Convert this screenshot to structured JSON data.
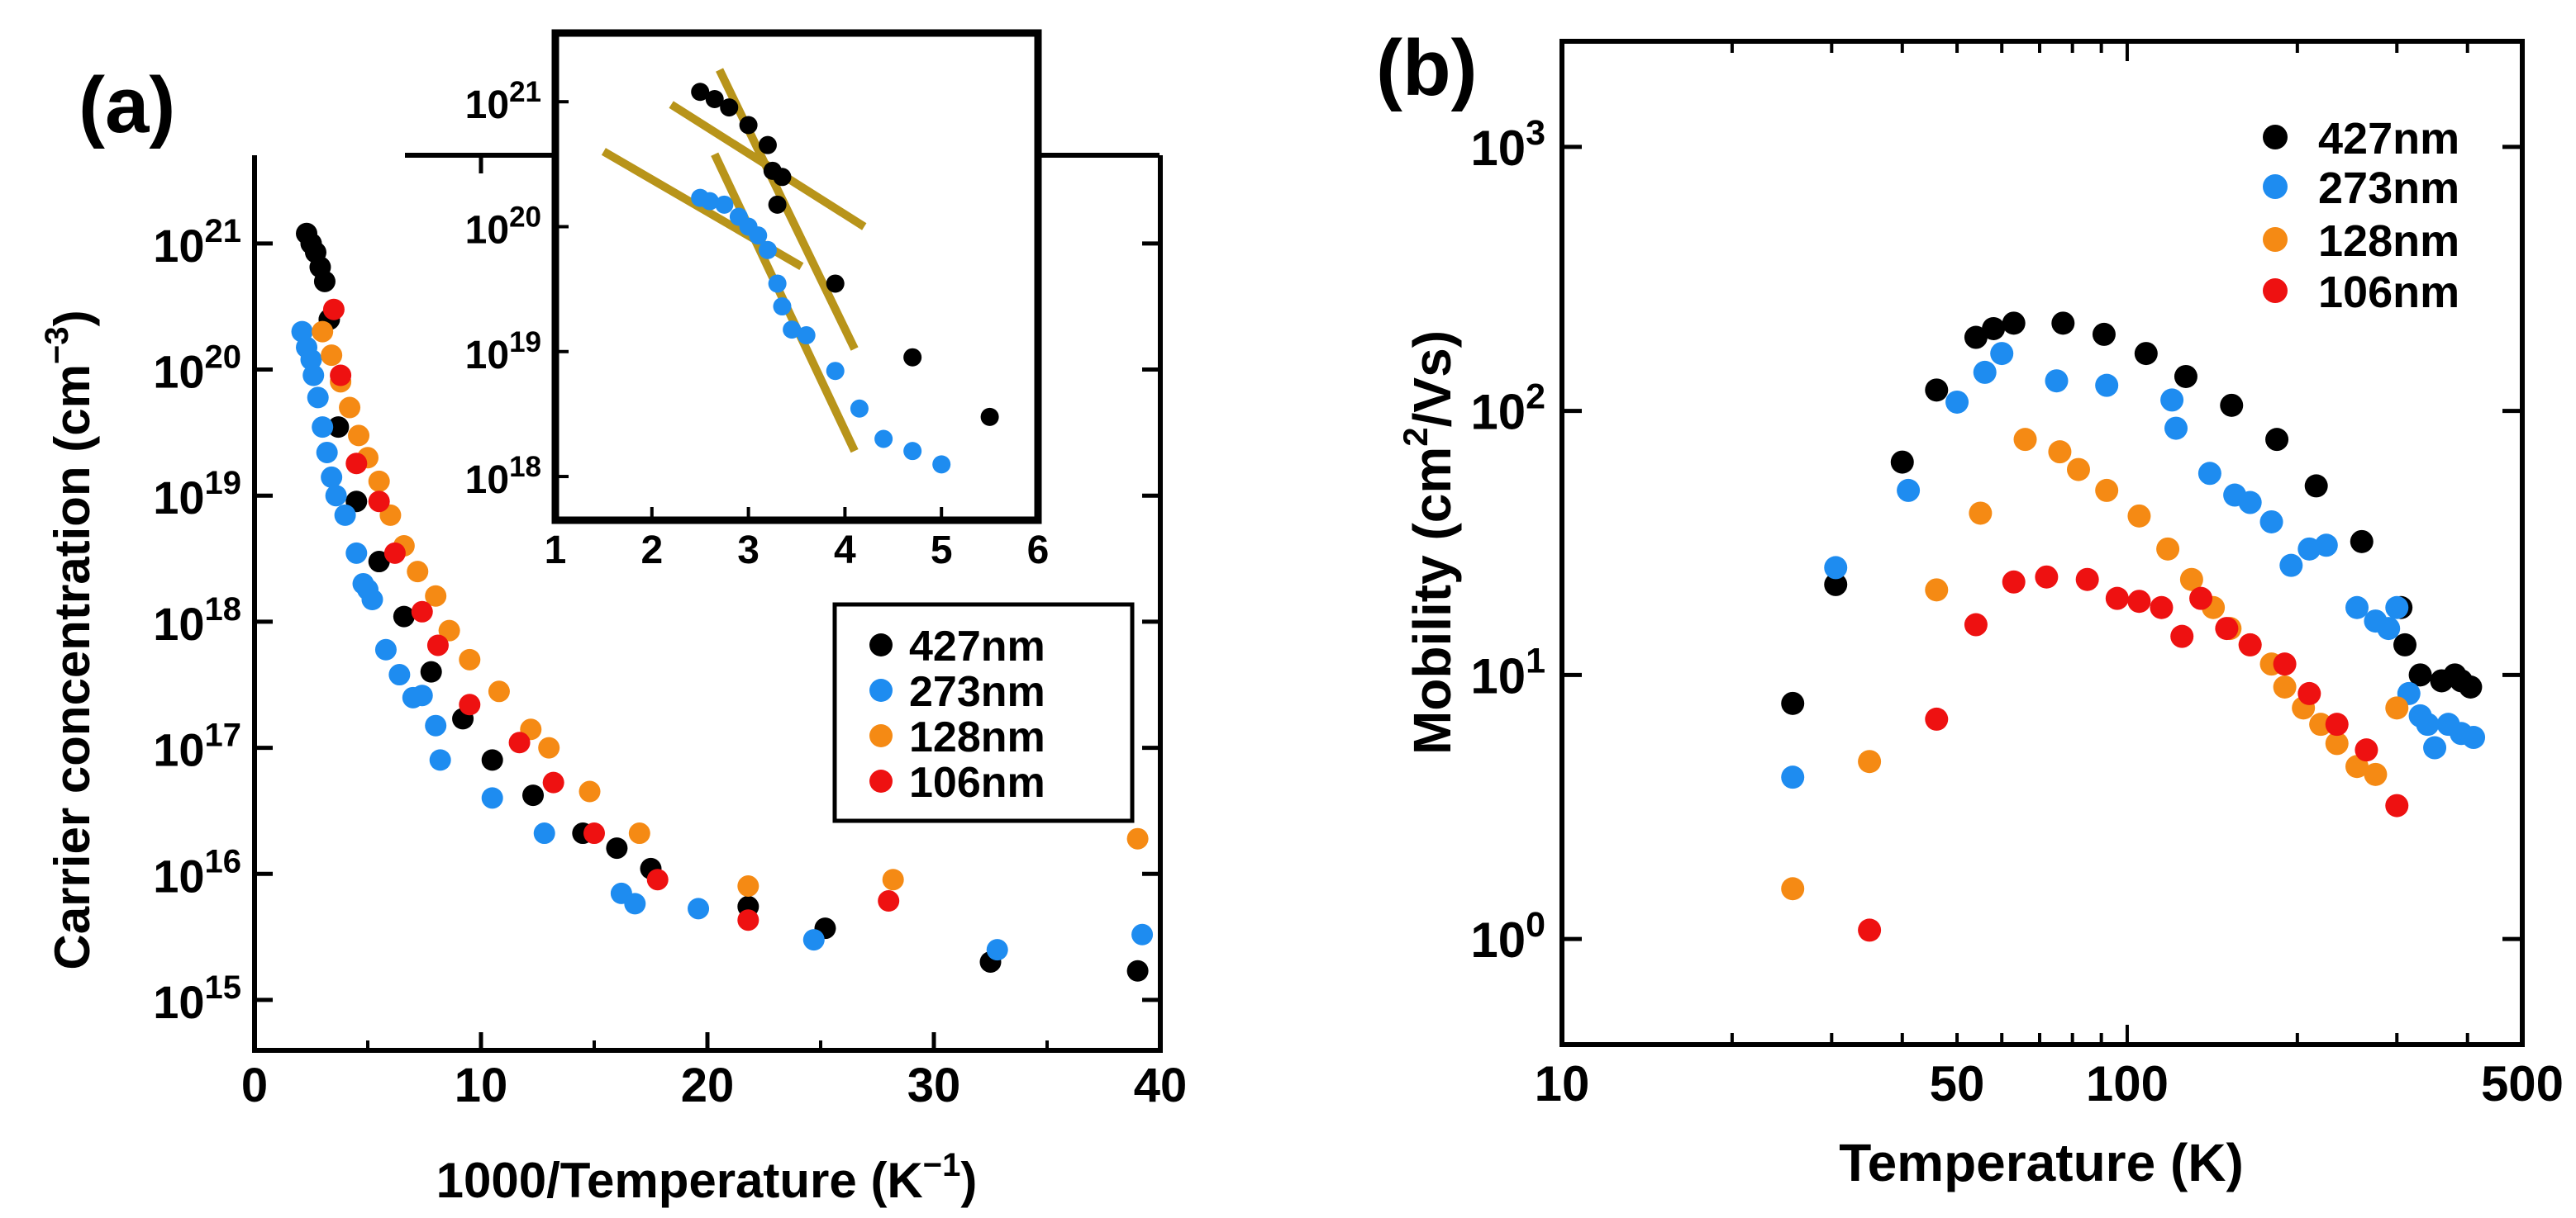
{
  "colors": {
    "427nm": "#000000",
    "273nm": "#1e8cf0",
    "128nm": "#f58a14",
    "106nm": "#ee1111",
    "fit_line": "#b8941a",
    "axis": "#000000"
  },
  "chart_data": [
    {
      "panel": "(a)",
      "type": "scatter",
      "xlabel_main": "1000/Temperature (K",
      "xlabel_sup": "−1",
      "xlabel_close": ")",
      "ylabel_main": "Carrier concentration (cm",
      "ylabel_sup": "−3",
      "ylabel_close": ")",
      "xlim": [
        0,
        40
      ],
      "ylim_log10": [
        14.6,
        21.7
      ],
      "x_ticks": [
        "0",
        "10",
        "20",
        "30",
        "40"
      ],
      "y_ticks": [
        {
          "base": "10",
          "exp": "15",
          "value": 15
        },
        {
          "base": "10",
          "exp": "16",
          "value": 16
        },
        {
          "base": "10",
          "exp": "17",
          "value": 17
        },
        {
          "base": "10",
          "exp": "18",
          "value": 18
        },
        {
          "base": "10",
          "exp": "19",
          "value": 19
        },
        {
          "base": "10",
          "exp": "20",
          "value": 20
        },
        {
          "base": "10",
          "exp": "21",
          "value": 21
        }
      ],
      "legend": [
        "427nm",
        "273nm",
        "128nm",
        "106nm"
      ],
      "series": [
        {
          "name": "427nm",
          "points": [
            [
              2.3,
              1.2e+21
            ],
            [
              2.5,
              1e+21
            ],
            [
              2.7,
              8.5e+20
            ],
            [
              2.9,
              6.5e+20
            ],
            [
              3.1,
              5e+20
            ],
            [
              3.3,
              2.5e+20
            ],
            [
              3.7,
              3.5e+19
            ],
            [
              4.5,
              9e+18
            ],
            [
              5.5,
              3e+18
            ],
            [
              6.6,
              1.1e+18
            ],
            [
              7.8,
              4e+17
            ],
            [
              9.2,
              1.7e+17
            ],
            [
              10.5,
              8e+16
            ],
            [
              12.3,
              4.2e+16
            ],
            [
              14.5,
              2.1e+16
            ],
            [
              16.0,
              1.6e+16
            ],
            [
              17.5,
              1.1e+16
            ],
            [
              21.8,
              5500000000000000.0
            ],
            [
              25.2,
              3700000000000000.0
            ],
            [
              32.5,
              2000000000000000.0
            ],
            [
              39.0,
              1700000000000000.0
            ]
          ]
        },
        {
          "name": "273nm",
          "points": [
            [
              2.1,
              2e+20
            ],
            [
              2.3,
              1.5e+20
            ],
            [
              2.5,
              1.2e+20
            ],
            [
              2.6,
              9e+19
            ],
            [
              2.8,
              6e+19
            ],
            [
              3.0,
              3.5e+19
            ],
            [
              3.2,
              2.2e+19
            ],
            [
              3.4,
              1.4e+19
            ],
            [
              3.6,
              1e+19
            ],
            [
              4.0,
              7e+18
            ],
            [
              4.5,
              3.5e+18
            ],
            [
              4.8,
              2e+18
            ],
            [
              5.0,
              1.8e+18
            ],
            [
              5.2,
              1.5e+18
            ],
            [
              5.8,
              6e+17
            ],
            [
              6.4,
              3.8e+17
            ],
            [
              7.0,
              2.5e+17
            ],
            [
              7.4,
              2.6e+17
            ],
            [
              8.0,
              1.5e+17
            ],
            [
              8.2,
              8e+16
            ],
            [
              10.5,
              4e+16
            ],
            [
              12.8,
              2.1e+16
            ],
            [
              16.2,
              7000000000000000.0
            ],
            [
              16.8,
              5800000000000000.0
            ],
            [
              19.6,
              5300000000000000.0
            ],
            [
              24.7,
              3000000000000000.0
            ],
            [
              32.8,
              2500000000000000.0
            ],
            [
              39.2,
              3300000000000000.0
            ]
          ]
        },
        {
          "name": "128nm",
          "points": [
            [
              3.0,
              2e+20
            ],
            [
              3.4,
              1.3e+20
            ],
            [
              3.8,
              8e+19
            ],
            [
              4.2,
              5e+19
            ],
            [
              4.6,
              3e+19
            ],
            [
              5.0,
              2e+19
            ],
            [
              5.5,
              1.3e+19
            ],
            [
              6.0,
              7e+18
            ],
            [
              6.6,
              4e+18
            ],
            [
              7.2,
              2.5e+18
            ],
            [
              8.0,
              1.6e+18
            ],
            [
              8.6,
              8.5e+17
            ],
            [
              9.5,
              5e+17
            ],
            [
              10.8,
              2.8e+17
            ],
            [
              12.2,
              1.4e+17
            ],
            [
              13.0,
              1e+17
            ],
            [
              14.8,
              4.5e+16
            ],
            [
              17.0,
              2.1e+16
            ],
            [
              21.8,
              8000000000000000.0
            ],
            [
              28.2,
              9000000000000000.0
            ],
            [
              39.0,
              1.9e+16
            ]
          ]
        },
        {
          "name": "106nm",
          "points": [
            [
              3.5,
              3e+20
            ],
            [
              3.8,
              9e+19
            ],
            [
              4.5,
              1.8e+19
            ],
            [
              5.5,
              9e+18
            ],
            [
              6.2,
              3.5e+18
            ],
            [
              7.4,
              1.2e+18
            ],
            [
              8.1,
              6.5e+17
            ],
            [
              9.5,
              2.2e+17
            ],
            [
              11.7,
              1.1e+17
            ],
            [
              13.2,
              5.3e+16
            ],
            [
              15.0,
              2.1e+16
            ],
            [
              17.8,
              9000000000000000.0
            ],
            [
              21.8,
              4300000000000000.0
            ],
            [
              28.0,
              6100000000000000.0
            ]
          ]
        }
      ],
      "inset": {
        "type": "scatter",
        "xlim": [
          1,
          6
        ],
        "ylim_log10": [
          17.65,
          21.55
        ],
        "x_ticks": [
          "1",
          "2",
          "3",
          "4",
          "5",
          "6"
        ],
        "y_ticks": [
          {
            "base": "10",
            "exp": "18",
            "value": 18
          },
          {
            "base": "10",
            "exp": "19",
            "value": 19
          },
          {
            "base": "10",
            "exp": "20",
            "value": 20
          },
          {
            "base": "10",
            "exp": "21",
            "value": 21
          }
        ],
        "series": [
          {
            "name": "427nm",
            "points": [
              [
                2.5,
                1.2e+21
              ],
              [
                2.65,
                1.05e+21
              ],
              [
                2.8,
                9e+20
              ],
              [
                3.0,
                6.5e+20
              ],
              [
                3.2,
                4.5e+20
              ],
              [
                3.25,
                2.8e+20
              ],
              [
                3.35,
                2.5e+20
              ],
              [
                3.3,
                1.5e+20
              ],
              [
                3.9,
                3.5e+19
              ],
              [
                4.7,
                9e+18
              ],
              [
                5.5,
                3e+18
              ]
            ]
          },
          {
            "name": "273nm",
            "points": [
              [
                2.5,
                1.7e+20
              ],
              [
                2.6,
                1.6e+20
              ],
              [
                2.75,
                1.5e+20
              ],
              [
                2.9,
                1.2e+20
              ],
              [
                3.0,
                1e+20
              ],
              [
                3.1,
                8.5e+19
              ],
              [
                3.2,
                6.5e+19
              ],
              [
                3.3,
                3.5e+19
              ],
              [
                3.35,
                2.3e+19
              ],
              [
                3.45,
                1.5e+19
              ],
              [
                3.6,
                1.35e+19
              ],
              [
                3.9,
                7e+18
              ],
              [
                4.15,
                3.5e+18
              ],
              [
                4.4,
                2e+18
              ],
              [
                4.7,
                1.6e+18
              ],
              [
                5.0,
                1.25e+18
              ]
            ]
          }
        ],
        "fit_lines": [
          [
            [
              2.2,
              9.5e+20
            ],
            [
              4.2,
              1e+20
            ]
          ],
          [
            [
              2.7,
              1.8e+21
            ],
            [
              4.1,
              1.05e+19
            ]
          ],
          [
            [
              1.5,
              4e+20
            ],
            [
              3.55,
              4.8e+19
            ]
          ],
          [
            [
              2.65,
              3.8e+20
            ],
            [
              4.1,
              1.6e+18
            ]
          ]
        ]
      }
    },
    {
      "panel": "(b)",
      "type": "scatter",
      "xlabel": "Temperature (K)",
      "ylabel_main": "Mobility (cm",
      "ylabel_sup": "2",
      "ylabel_close": "/Vs)",
      "xlim": [
        10,
        500
      ],
      "x_scale": "log",
      "ylim_log10": [
        -0.4,
        3.4
      ],
      "x_ticks": [
        {
          "label": "10",
          "value": 10
        },
        {
          "label": "50",
          "value": 50
        },
        {
          "label": "100",
          "value": 100
        },
        {
          "label": "500",
          "value": 500
        }
      ],
      "y_ticks": [
        {
          "base": "10",
          "exp": "0",
          "value": 0
        },
        {
          "base": "10",
          "exp": "1",
          "value": 1
        },
        {
          "base": "10",
          "exp": "2",
          "value": 2
        },
        {
          "base": "10",
          "exp": "3",
          "value": 3
        }
      ],
      "legend": [
        "427nm",
        "273nm",
        "128nm",
        "106nm"
      ],
      "series": [
        {
          "name": "427nm",
          "points": [
            [
              25.6,
              7.8
            ],
            [
              30.5,
              22
            ],
            [
              40,
              64
            ],
            [
              46,
              120
            ],
            [
              54,
              190
            ],
            [
              58,
              205
            ],
            [
              63,
              215
            ],
            [
              77,
              215
            ],
            [
              91,
              195
            ],
            [
              108,
              165
            ],
            [
              127,
              135
            ],
            [
              153,
              105
            ],
            [
              184,
              78
            ],
            [
              216,
              52
            ],
            [
              260,
              32
            ],
            [
              305,
              18
            ],
            [
              310,
              13
            ],
            [
              330,
              10
            ],
            [
              360,
              9.5
            ],
            [
              380,
              10
            ],
            [
              390,
              9.5
            ],
            [
              405,
              9
            ]
          ]
        },
        {
          "name": "273nm",
          "points": [
            [
              25.6,
              4.1
            ],
            [
              30.5,
              25.5
            ],
            [
              41,
              50
            ],
            [
              50,
              108
            ],
            [
              56,
              140
            ],
            [
              60,
              165
            ],
            [
              75,
              130
            ],
            [
              92,
              125
            ],
            [
              120,
              110
            ],
            [
              122,
              86
            ],
            [
              140,
              58
            ],
            [
              155,
              48
            ],
            [
              165,
              45
            ],
            [
              180,
              38
            ],
            [
              195,
              26
            ],
            [
              210,
              30
            ],
            [
              225,
              31
            ],
            [
              255,
              18
            ],
            [
              275,
              16
            ],
            [
              290,
              15
            ],
            [
              300,
              18
            ],
            [
              315,
              8.5
            ],
            [
              330,
              7
            ],
            [
              340,
              6.5
            ],
            [
              350,
              5.3
            ],
            [
              370,
              6.5
            ],
            [
              390,
              6
            ],
            [
              410,
              5.8
            ]
          ]
        },
        {
          "name": "128nm",
          "points": [
            [
              25.6,
              1.55
            ],
            [
              35,
              4.7
            ],
            [
              46,
              21
            ],
            [
              55,
              41
            ],
            [
              66,
              78
            ],
            [
              76,
              70
            ],
            [
              82,
              60
            ],
            [
              92,
              50
            ],
            [
              105,
              40
            ],
            [
              118,
              30
            ],
            [
              130,
              23
            ],
            [
              142,
              18
            ],
            [
              152,
              15
            ],
            [
              165,
              13
            ],
            [
              180,
              11
            ],
            [
              190,
              9
            ],
            [
              205,
              7.5
            ],
            [
              220,
              6.5
            ],
            [
              235,
              5.5
            ],
            [
              255,
              4.5
            ],
            [
              275,
              4.2
            ],
            [
              300,
              7.5
            ]
          ]
        },
        {
          "name": "106nm",
          "points": [
            [
              35,
              1.08
            ],
            [
              46,
              6.8
            ],
            [
              54,
              15.5
            ],
            [
              63,
              22.5
            ],
            [
              72,
              23.5
            ],
            [
              85,
              23
            ],
            [
              96,
              19.5
            ],
            [
              105,
              19
            ],
            [
              115,
              18
            ],
            [
              125,
              14
            ],
            [
              135,
              19.5
            ],
            [
              150,
              15
            ],
            [
              165,
              13
            ],
            [
              190,
              11
            ],
            [
              210,
              8.5
            ],
            [
              235,
              6.5
            ],
            [
              265,
              5.2
            ],
            [
              300,
              3.2
            ]
          ]
        }
      ]
    }
  ]
}
